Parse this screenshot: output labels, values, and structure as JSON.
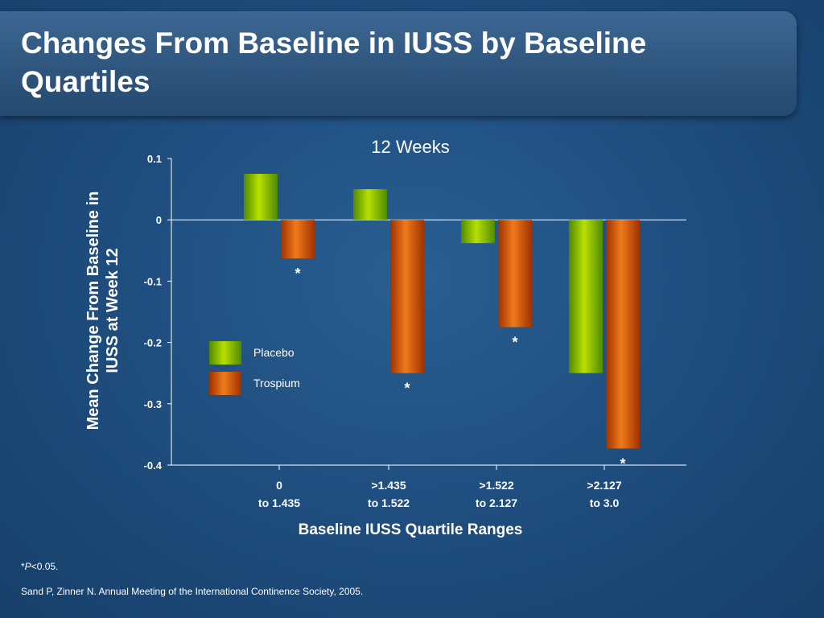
{
  "slide": {
    "title": "Changes From Baseline in IUSS by Baseline Quartiles",
    "footnote_star": "*",
    "footnote_p": "P",
    "footnote_rest": "<0.05.",
    "citation": "Sand P, Zinner N. Annual Meeting of the International Continence Society, 2005."
  },
  "colors": {
    "placebo": "#7fbf00",
    "trospium": "#e25a00"
  },
  "chart_data": {
    "type": "bar",
    "title": "12 Weeks",
    "xlabel": "Baseline IUSS Quartile Ranges",
    "ylabel": "Mean Change From Baseline in IUSS at Week 12",
    "ylim": [
      -0.4,
      0.1
    ],
    "yticks": [
      "0.1",
      "0",
      "-0.1",
      "-0.2",
      "-0.3",
      "-0.4"
    ],
    "ytick_values": [
      0.1,
      0,
      -0.1,
      -0.2,
      -0.3,
      -0.4
    ],
    "categories": [
      {
        "line1": "0",
        "line2": "to 1.435"
      },
      {
        "line1": ">1.435",
        "line2": "to 1.522"
      },
      {
        "line1": ">1.522",
        "line2": "to 2.127"
      },
      {
        "line1": ">2.127",
        "line2": "to 3.0"
      }
    ],
    "series": [
      {
        "name": "Placebo",
        "values": [
          0.075,
          0.05,
          -0.038,
          -0.25
        ],
        "significant": [
          false,
          false,
          false,
          false
        ]
      },
      {
        "name": "Trospium",
        "values": [
          -0.063,
          -0.25,
          -0.175,
          -0.373
        ],
        "significant": [
          true,
          true,
          true,
          true
        ]
      }
    ],
    "significance_marker": "*",
    "legend_position": "center-left",
    "grid": false
  }
}
